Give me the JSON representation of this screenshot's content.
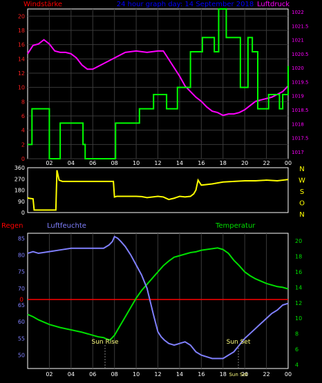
{
  "header": {
    "left_label": "Windstärke",
    "title": "24 hour graph day: 14 September 2018",
    "right_label": "Luftdruck"
  },
  "bottom_header": {
    "rain_label": "Regen",
    "humidity_label": "Luftfeuchte",
    "temperature_label": "Temperatur"
  },
  "compass_labels": [
    "N",
    "W",
    "S",
    "O",
    "N"
  ],
  "colors": {
    "wind": "#00ff00",
    "pressure": "#ff00ff",
    "direction": "#ffff00",
    "humidity": "#8080ff",
    "temperature": "#00e000",
    "rain": "#ff0000",
    "grid": "#3a3a3a"
  },
  "chart_data": [
    {
      "type": "line",
      "name": "top-panel",
      "x_tick_labels": [
        "02",
        "04",
        "06",
        "08",
        "10",
        "12",
        "14",
        "16",
        "18",
        "20",
        "22",
        "00"
      ],
      "x_range": [
        0,
        24
      ],
      "grid": true,
      "left_axis": {
        "label": "Windstärke",
        "range": [
          0,
          21
        ],
        "ticks": [
          0,
          2,
          4,
          6,
          8,
          10,
          12,
          14,
          16,
          18,
          20
        ]
      },
      "right_axis": {
        "label": "Luftdruck",
        "range": [
          1016.75,
          1022.1
        ],
        "ticks": [
          1017,
          1017.5,
          1018,
          1018.5,
          1019,
          1019.5,
          1020,
          1020.5,
          1021,
          1021.5,
          1022
        ]
      },
      "series": [
        {
          "axis": "left",
          "step": true,
          "x": [
            0,
            0.4,
            0.9,
            2.0,
            2.3,
            3.0,
            4.7,
            5.1,
            5.3,
            7.9,
            8.1,
            9.9,
            10.3,
            11.1,
            11.6,
            12.3,
            12.8,
            13.3,
            13.8,
            14.5,
            15.0,
            15.6,
            16.1,
            16.6,
            17.2,
            17.6,
            18.3,
            18.7,
            19.2,
            19.6,
            20.3,
            20.7,
            21.2,
            21.7,
            22.2,
            22.6,
            23.2,
            23.5,
            23.9,
            24
          ],
          "y": [
            2,
            7,
            7,
            0,
            0,
            5,
            5,
            2,
            0,
            0,
            5,
            5,
            7,
            7,
            9,
            9,
            7,
            7,
            10,
            10,
            15,
            15,
            17,
            17,
            15,
            21,
            17,
            17,
            17,
            10,
            17,
            15,
            7,
            7,
            9,
            9,
            7,
            9,
            9,
            13
          ]
        },
        {
          "axis": "right",
          "x": [
            0,
            0.5,
            1.0,
            1.5,
            2.0,
            2.5,
            3.0,
            3.5,
            4.0,
            4.5,
            5.0,
            5.5,
            6.0,
            7.0,
            8.0,
            9.0,
            10.0,
            11.0,
            12.0,
            12.5,
            13.0,
            13.5,
            14.0,
            14.5,
            15.0,
            15.5,
            16.0,
            16.5,
            17.0,
            17.5,
            18.0,
            18.5,
            19.0,
            19.5,
            20.0,
            20.5,
            21.0,
            21.5,
            22.0,
            22.5,
            23.0,
            23.5,
            24
          ],
          "y": [
            1020.5,
            1020.8,
            1020.85,
            1021.0,
            1020.85,
            1020.6,
            1020.55,
            1020.55,
            1020.5,
            1020.35,
            1020.1,
            1019.95,
            1019.95,
            1020.15,
            1020.35,
            1020.55,
            1020.6,
            1020.55,
            1020.6,
            1020.6,
            1020.3,
            1020.0,
            1019.7,
            1019.35,
            1019.15,
            1018.95,
            1018.8,
            1018.6,
            1018.45,
            1018.4,
            1018.3,
            1018.35,
            1018.35,
            1018.4,
            1018.5,
            1018.65,
            1018.8,
            1018.85,
            1018.9,
            1018.95,
            1019.05,
            1019.15,
            1019.35
          ]
        }
      ]
    },
    {
      "type": "line",
      "name": "wind-direction-panel",
      "x_range": [
        0,
        24
      ],
      "left_axis": {
        "range": [
          0,
          360
        ],
        "ticks": [
          0,
          90,
          180,
          270,
          360
        ]
      },
      "right_labels": [
        "N",
        "W",
        "S",
        "O",
        "N"
      ],
      "series": [
        {
          "axis": "left",
          "x": [
            0,
            0.1,
            0.5,
            0.6,
            2.5,
            2.6,
            2.7,
            2.9,
            3.2,
            4.0,
            5.0,
            6.0,
            7.5,
            7.9,
            8.0,
            8.2,
            9.0,
            10.0,
            10.5,
            11.0,
            12.0,
            12.5,
            13.0,
            13.5,
            14.0,
            14.5,
            15.0,
            15.3,
            15.5,
            15.7,
            16.0,
            17.0,
            18.0,
            19.0,
            20.0,
            21.0,
            22.0,
            23.0,
            24
          ],
          "y": [
            120,
            115,
            110,
            20,
            20,
            20,
            340,
            260,
            250,
            250,
            250,
            250,
            250,
            250,
            125,
            130,
            130,
            130,
            128,
            120,
            130,
            125,
            105,
            115,
            130,
            125,
            130,
            150,
            180,
            260,
            220,
            230,
            245,
            250,
            255,
            255,
            260,
            255,
            265
          ]
        }
      ]
    },
    {
      "type": "line",
      "name": "bottom-panel",
      "x_tick_labels": [
        "02",
        "04",
        "06",
        "08",
        "10",
        "12",
        "14",
        "16",
        "18",
        "20",
        "22",
        "00"
      ],
      "x_range": [
        0,
        24
      ],
      "grid": true,
      "annotations": [
        "Sun Rise",
        "Sun Set",
        "Sun Set"
      ],
      "left_axis": {
        "label": "Luftfeuchte",
        "range": [
          46,
          86.5
        ],
        "ticks": [
          50,
          55,
          60,
          65,
          70,
          75,
          80,
          85
        ]
      },
      "right_axis": {
        "label": "Temperatur",
        "range": [
          3.5,
          21
        ],
        "ticks": [
          4,
          6,
          8,
          10,
          12,
          14,
          16,
          18,
          20
        ]
      },
      "series": [
        {
          "axis": "left",
          "name": "Luftfeuchte",
          "x": [
            0,
            0.5,
            1.0,
            2.0,
            3.0,
            4.0,
            5.0,
            6.0,
            7.0,
            7.5,
            7.8,
            8.0,
            8.3,
            8.6,
            9.0,
            9.5,
            10.0,
            10.5,
            11.0,
            11.3,
            11.6,
            12.0,
            12.3,
            12.6,
            13.0,
            13.5,
            14.0,
            14.5,
            15.0,
            15.5,
            16.0,
            16.5,
            17.0,
            17.5,
            18.0,
            18.5,
            19.0,
            19.5,
            20.0,
            20.5,
            21.0,
            21.5,
            22.0,
            22.5,
            23.0,
            23.5,
            24
          ],
          "y": [
            80.5,
            81,
            80.5,
            81,
            81.5,
            82,
            82,
            82,
            82,
            83,
            84,
            85.5,
            85,
            84,
            82.5,
            80,
            77,
            74,
            70,
            66,
            62,
            57,
            55.5,
            54.5,
            53.5,
            53,
            53.5,
            54,
            53,
            51,
            50,
            49.5,
            49,
            49,
            49,
            50,
            51,
            53,
            55,
            56.5,
            58,
            59.5,
            61,
            62.5,
            63.5,
            65,
            65.5
          ]
        },
        {
          "axis": "right",
          "name": "Temperatur",
          "x": [
            0,
            0.5,
            1.0,
            1.5,
            2.0,
            3.0,
            4.0,
            5.0,
            6.0,
            6.5,
            7.0,
            7.3,
            7.6,
            8.0,
            8.5,
            9.0,
            9.5,
            10.0,
            10.5,
            11.0,
            11.5,
            12.0,
            12.5,
            13.0,
            13.5,
            14.0,
            14.5,
            15.0,
            15.5,
            16.0,
            16.5,
            17.0,
            17.5,
            18.0,
            18.5,
            19.0,
            19.5,
            20.0,
            20.5,
            21.0,
            21.5,
            22.0,
            22.5,
            23.0,
            23.5,
            24
          ],
          "y": [
            10.5,
            10.2,
            9.8,
            9.5,
            9.2,
            8.8,
            8.5,
            8.2,
            7.8,
            7.6,
            7.5,
            7.3,
            7.2,
            7.8,
            9,
            10.2,
            11.4,
            12.6,
            13.6,
            14.4,
            15.2,
            16,
            16.8,
            17.4,
            17.9,
            18.1,
            18.3,
            18.5,
            18.6,
            18.8,
            18.9,
            19,
            19.1,
            18.9,
            18.4,
            17.5,
            16.8,
            16,
            15.5,
            15.1,
            14.8,
            14.5,
            14.3,
            14.1,
            14,
            13.8
          ]
        },
        {
          "axis": "rain",
          "name": "Regen",
          "x": [
            0,
            24
          ],
          "y": [
            0,
            0
          ]
        }
      ]
    }
  ]
}
